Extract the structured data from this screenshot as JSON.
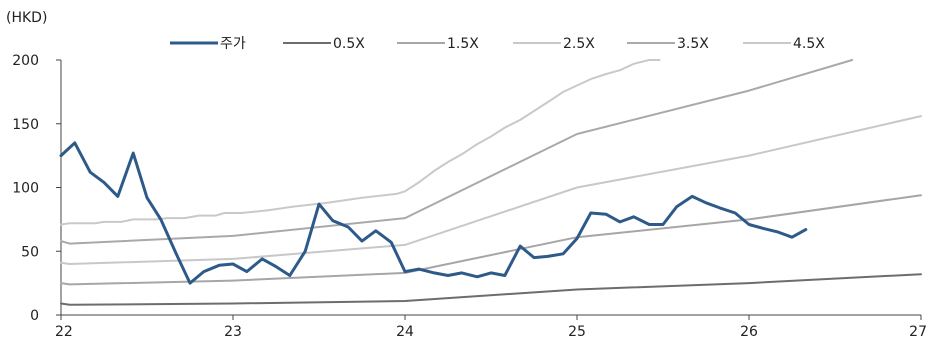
{
  "chart_data": {
    "type": "line",
    "unit_label": "(HKD)",
    "x_ticks": [
      "22",
      "23",
      "24",
      "25",
      "26",
      "27"
    ],
    "x_tick_values": [
      22,
      23,
      24,
      25,
      26,
      27
    ],
    "xlim": [
      22,
      27
    ],
    "y_ticks": [
      "0",
      "50",
      "100",
      "150",
      "200"
    ],
    "y_tick_values": [
      0,
      50,
      100,
      150,
      200
    ],
    "ylim": [
      0,
      200
    ],
    "legend_position": "top",
    "series": [
      {
        "name": "주가",
        "color": "#2e5a8a",
        "points": [
          [
            22.0,
            125
          ],
          [
            22.08,
            135
          ],
          [
            22.17,
            112
          ],
          [
            22.25,
            104
          ],
          [
            22.33,
            93
          ],
          [
            22.42,
            127
          ],
          [
            22.5,
            92
          ],
          [
            22.58,
            75
          ],
          [
            22.67,
            48
          ],
          [
            22.75,
            25
          ],
          [
            22.83,
            34
          ],
          [
            22.92,
            39
          ],
          [
            23.0,
            40
          ],
          [
            23.08,
            34
          ],
          [
            23.17,
            44
          ],
          [
            23.25,
            38
          ],
          [
            23.33,
            31
          ],
          [
            23.42,
            50
          ],
          [
            23.5,
            87
          ],
          [
            23.58,
            74
          ],
          [
            23.67,
            69
          ],
          [
            23.75,
            58
          ],
          [
            23.83,
            66
          ],
          [
            23.92,
            57
          ],
          [
            24.0,
            34
          ],
          [
            24.08,
            36
          ],
          [
            24.17,
            33
          ],
          [
            24.25,
            31
          ],
          [
            24.33,
            33
          ],
          [
            24.42,
            30
          ],
          [
            24.5,
            33
          ],
          [
            24.58,
            31
          ],
          [
            24.67,
            54
          ],
          [
            24.75,
            45
          ],
          [
            24.83,
            46
          ],
          [
            24.92,
            48
          ],
          [
            25.0,
            60
          ],
          [
            25.08,
            80
          ],
          [
            25.17,
            79
          ],
          [
            25.25,
            73
          ],
          [
            25.33,
            77
          ],
          [
            25.42,
            71
          ],
          [
            25.5,
            71
          ],
          [
            25.58,
            85
          ],
          [
            25.67,
            93
          ],
          [
            25.75,
            88
          ],
          [
            25.83,
            84
          ],
          [
            25.92,
            80
          ],
          [
            26.0,
            71
          ],
          [
            26.08,
            68
          ],
          [
            26.17,
            65
          ],
          [
            26.25,
            61
          ],
          [
            26.33,
            67
          ]
        ]
      },
      {
        "name": "0.5X",
        "color": "#6d6d6d",
        "points": [
          [
            22.0,
            9
          ],
          [
            22.05,
            8
          ],
          [
            23.0,
            9
          ],
          [
            24.0,
            11
          ],
          [
            25.0,
            20
          ],
          [
            26.0,
            25
          ],
          [
            27.0,
            32
          ]
        ]
      },
      {
        "name": "1.5X",
        "color": "#a6a6a6",
        "points": [
          [
            22.0,
            25
          ],
          [
            22.05,
            24
          ],
          [
            23.0,
            27
          ],
          [
            24.0,
            33
          ],
          [
            25.0,
            61
          ],
          [
            26.0,
            75
          ],
          [
            27.0,
            94
          ]
        ]
      },
      {
        "name": "2.5X",
        "color": "#c8c8c8",
        "points": [
          [
            22.0,
            41
          ],
          [
            22.05,
            40
          ],
          [
            23.0,
            44
          ],
          [
            24.0,
            55
          ],
          [
            25.0,
            100
          ],
          [
            26.0,
            125
          ],
          [
            27.0,
            156
          ]
        ]
      },
      {
        "name": "3.5X",
        "color": "#a9a9a9",
        "points": [
          [
            22.0,
            58
          ],
          [
            22.05,
            56
          ],
          [
            23.0,
            62
          ],
          [
            24.0,
            76
          ],
          [
            25.0,
            142
          ],
          [
            26.0,
            176
          ],
          [
            26.6,
            201
          ]
        ]
      },
      {
        "name": "4.5X",
        "color": "#c9c9c9",
        "points": [
          [
            22.0,
            71
          ],
          [
            22.05,
            72
          ],
          [
            22.2,
            72
          ],
          [
            22.25,
            73
          ],
          [
            22.35,
            73
          ],
          [
            22.42,
            75
          ],
          [
            22.55,
            75
          ],
          [
            22.62,
            76
          ],
          [
            22.72,
            76
          ],
          [
            22.8,
            78
          ],
          [
            22.9,
            78
          ],
          [
            22.95,
            80
          ],
          [
            23.05,
            80
          ],
          [
            23.2,
            82
          ],
          [
            23.35,
            85
          ],
          [
            23.55,
            88
          ],
          [
            23.75,
            92
          ],
          [
            23.95,
            95
          ],
          [
            24.0,
            97
          ],
          [
            24.08,
            104
          ],
          [
            24.17,
            113
          ],
          [
            24.25,
            120
          ],
          [
            24.33,
            126
          ],
          [
            24.42,
            134
          ],
          [
            24.5,
            140
          ],
          [
            24.58,
            147
          ],
          [
            24.67,
            153
          ],
          [
            24.75,
            160
          ],
          [
            24.83,
            167
          ],
          [
            24.92,
            175
          ],
          [
            25.0,
            180
          ],
          [
            25.08,
            185
          ],
          [
            25.17,
            189
          ],
          [
            25.25,
            192
          ],
          [
            25.33,
            197
          ],
          [
            25.42,
            200
          ],
          [
            25.48,
            201
          ]
        ]
      }
    ]
  }
}
